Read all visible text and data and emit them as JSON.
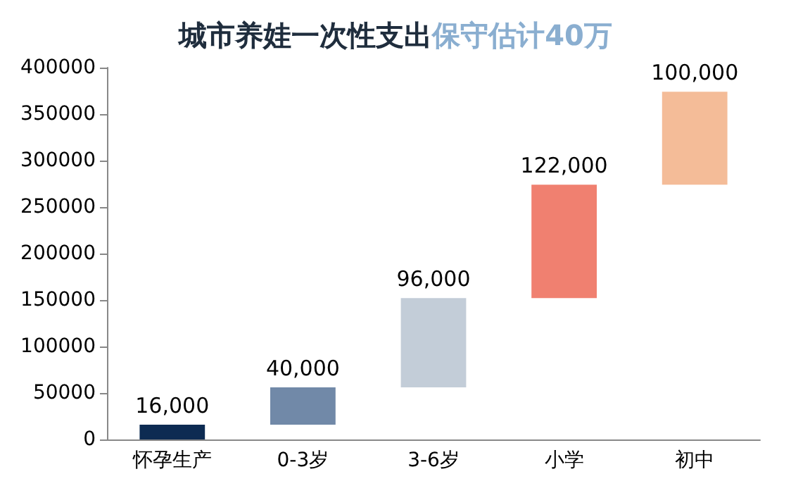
{
  "chart_data": {
    "type": "bar",
    "title": "城市养娃一次性支出",
    "subtitle": "保守估计40万",
    "categories": [
      "怀孕生产",
      "0-3岁",
      "3-6岁",
      "小学",
      "初中"
    ],
    "values": [
      16000,
      40000,
      96000,
      122000,
      100000
    ],
    "base": [
      0,
      16000,
      56000,
      152000,
      274000
    ],
    "colors": [
      "#0d2b52",
      "#7189a8",
      "#c3cdd8",
      "#f08070",
      "#f4bc98"
    ],
    "value_labels": [
      "16,000",
      "40,000",
      "96,000",
      "122,000",
      "100,000"
    ],
    "ylim": [
      0,
      400000
    ],
    "yticks": [
      0,
      50000,
      100000,
      150000,
      200000,
      250000,
      300000,
      350000,
      400000
    ],
    "grid": false
  }
}
